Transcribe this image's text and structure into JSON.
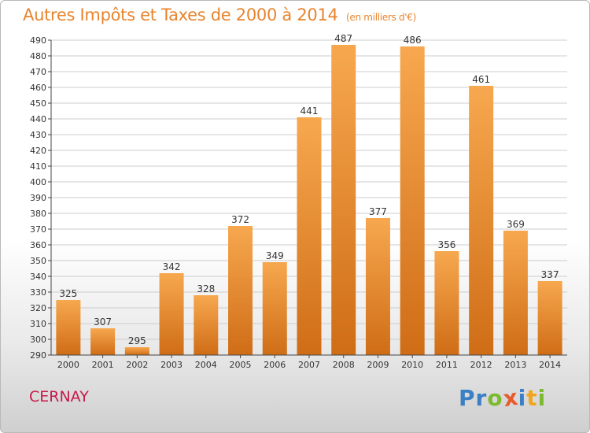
{
  "header": {
    "title": "Autres Impôts et Taxes de 2000 à 2014",
    "unit": "(en milliers d'€)"
  },
  "footer": {
    "place": "CERNAY",
    "brand": "Proxiti",
    "brand_letters": [
      "P",
      "r",
      "o",
      "x",
      "i",
      "t",
      "i"
    ],
    "brand_colors": [
      "#3b7fc4",
      "#3b7fc4",
      "#7cba2f",
      "#e85c2c",
      "#3b7fc4",
      "#f2a51c",
      "#7cba2f"
    ]
  },
  "colors": {
    "bar_light": "#f7a84f",
    "bar_dark": "#cf6d16",
    "axis": "#444444",
    "grid": "#cccccc",
    "title": "#e8842d",
    "place": "#c8194b"
  },
  "chart_data": {
    "type": "bar",
    "categories": [
      "2000",
      "2001",
      "2002",
      "2003",
      "2004",
      "2005",
      "2006",
      "2007",
      "2008",
      "2009",
      "2010",
      "2011",
      "2012",
      "2013",
      "2014"
    ],
    "values": [
      325,
      307,
      295,
      342,
      328,
      372,
      349,
      441,
      487,
      377,
      486,
      356,
      461,
      369,
      337
    ],
    "ylim": [
      290,
      490
    ],
    "ytick_step": 10,
    "grid": true,
    "data_labels": true
  }
}
